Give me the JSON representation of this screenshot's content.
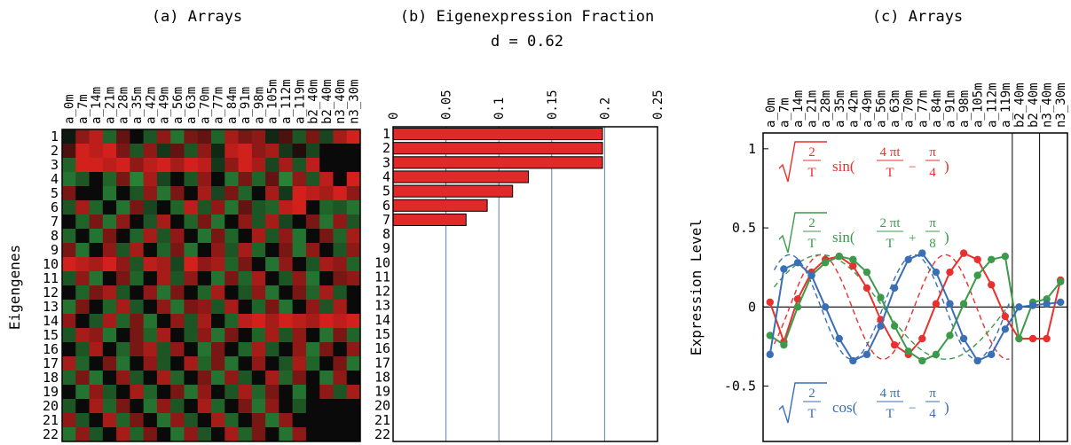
{
  "panel_a": {
    "title": "(a) Arrays",
    "ylabel": "Eigengenes"
  },
  "panel_b": {
    "title": "(b) Eigenexpression Fraction",
    "subtitle": "d = 0.62"
  },
  "panel_c": {
    "title": "(c) Arrays",
    "ylabel": "Expression Level"
  },
  "array_labels": [
    "a_0m",
    "a_7m",
    "a_14m",
    "a_21m",
    "a_28m",
    "a_35m",
    "a_42m",
    "a_49m",
    "a_56m",
    "a_63m",
    "a_70m",
    "a_77m",
    "a_84m",
    "a_91m",
    "a_98m",
    "a_105m",
    "a_112m",
    "a_119m",
    "b2_40m",
    "b2_40m",
    "n3_40m",
    "n3_30m"
  ],
  "eigengene_labels": [
    "1",
    "2",
    "3",
    "4",
    "5",
    "6",
    "7",
    "8",
    "9",
    "10",
    "11",
    "12",
    "13",
    "14",
    "15",
    "16",
    "17",
    "18",
    "19",
    "20",
    "21",
    "22"
  ],
  "colors": {
    "red": "#e8312f",
    "green": "#3d9a4a",
    "blue": "#3a6fb5",
    "bar": "#e02a2a",
    "grid": "#5b7fb5",
    "heat_red": "#e8231f",
    "heat_green": "#2fa040",
    "heat_black": "#0a0a0a"
  },
  "chart_data": [
    {
      "type": "heatmap",
      "rows": 22,
      "cols": 22,
      "description_scale": "red positive, green negative, black zero",
      "values": [
        [
          -0.1,
          0.6,
          0.8,
          -0.6,
          0.4,
          0.0,
          -0.5,
          0.6,
          -0.7,
          0.5,
          0.4,
          -0.6,
          0.7,
          0.5,
          0.6,
          -0.2,
          0.3,
          -0.5,
          0.5,
          -0.4,
          0.7,
          0.9
        ],
        [
          0.3,
          0.9,
          0.8,
          0.9,
          0.5,
          -0.5,
          0.6,
          -0.3,
          0.4,
          -0.5,
          0.6,
          -0.2,
          0.8,
          0.9,
          0.6,
          0.7,
          -0.3,
          0.1,
          -0.4,
          0.0,
          0.0,
          0.0
        ],
        [
          -0.6,
          0.9,
          0.9,
          0.8,
          0.9,
          0.6,
          0.8,
          0.9,
          0.7,
          0.9,
          0.8,
          -0.3,
          0.6,
          0.9,
          0.7,
          -0.4,
          0.7,
          -0.5,
          0.8,
          0.0,
          0.0,
          0.0
        ],
        [
          -0.7,
          -0.5,
          0.0,
          -0.6,
          0.5,
          -0.8,
          0.7,
          -0.4,
          0.0,
          -0.5,
          0.6,
          0.0,
          -0.7,
          0.5,
          -0.6,
          0.4,
          -0.8,
          0.6,
          -0.5,
          0.8,
          0.0,
          0.9
        ],
        [
          0.5,
          0.0,
          0.0,
          -0.7,
          0.0,
          -0.5,
          0.6,
          -0.7,
          0.5,
          0.0,
          0.7,
          -0.4,
          0.5,
          -0.6,
          0.0,
          0.7,
          -0.3,
          0.9,
          0.8,
          0.7,
          0.9,
          0.6
        ],
        [
          -0.5,
          0.7,
          -0.6,
          0.0,
          -0.7,
          0.5,
          -0.4,
          0.0,
          -0.6,
          0.8,
          -0.5,
          0.6,
          -0.7,
          0.4,
          -0.5,
          -0.6,
          0.8,
          0.9,
          0.0,
          -0.6,
          -0.5,
          -0.7
        ],
        [
          0.0,
          -0.6,
          0.5,
          -0.7,
          0.6,
          0.0,
          -0.5,
          0.7,
          0.0,
          -0.6,
          0.5,
          -0.7,
          0.0,
          0.6,
          -0.5,
          0.7,
          -0.4,
          0.0,
          0.5,
          -0.7,
          0.6,
          -0.5
        ],
        [
          -0.6,
          0.0,
          -0.7,
          0.5,
          0.0,
          -0.6,
          0.7,
          -0.5,
          0.6,
          0.0,
          -0.7,
          0.5,
          -0.6,
          0.0,
          0.7,
          -0.5,
          0.6,
          -0.7,
          0.0,
          0.5,
          -0.6,
          0.7
        ],
        [
          0.5,
          -0.7,
          0.0,
          0.6,
          -0.5,
          0.7,
          0.0,
          -0.6,
          0.5,
          -0.7,
          0.0,
          0.6,
          -0.5,
          0.7,
          -0.6,
          0.0,
          0.5,
          -0.7,
          0.6,
          0.0,
          -0.5,
          0.6
        ],
        [
          0.9,
          0.8,
          0.7,
          0.9,
          0.6,
          -0.5,
          0.8,
          0.7,
          -0.4,
          0.9,
          0.6,
          0.7,
          -0.6,
          0.5,
          0.0,
          -0.7,
          0.6,
          0.0,
          -0.5,
          0.7,
          0.6,
          -0.6
        ],
        [
          -0.5,
          0.6,
          -0.7,
          0.0,
          0.5,
          -0.6,
          0.0,
          0.7,
          -0.5,
          0.6,
          0.0,
          -0.7,
          0.5,
          -0.6,
          0.7,
          0.0,
          -0.5,
          0.6,
          -0.7,
          0.0,
          0.5,
          0.6
        ],
        [
          0.0,
          -0.6,
          0.5,
          0.7,
          -0.5,
          0.0,
          0.6,
          -0.7,
          0.5,
          0.0,
          -0.6,
          0.7,
          0.0,
          -0.5,
          0.6,
          -0.7,
          0.0,
          0.5,
          -0.6,
          0.7,
          -0.5,
          0.0
        ],
        [
          -0.7,
          0.5,
          0.0,
          -0.6,
          0.7,
          -0.5,
          0.0,
          0.6,
          -0.7,
          0.5,
          0.6,
          -0.5,
          0.7,
          0.0,
          -0.6,
          0.5,
          -0.7,
          0.0,
          0.6,
          -0.5,
          0.7,
          0.0
        ],
        [
          0.6,
          0.0,
          -0.5,
          0.7,
          -0.6,
          0.5,
          -0.7,
          0.0,
          0.6,
          -0.5,
          0.7,
          0.0,
          -0.6,
          0.8,
          0.9,
          0.7,
          0.9,
          0.8,
          0.7,
          0.9,
          0.8,
          0.9
        ],
        [
          -0.5,
          0.7,
          0.6,
          -0.7,
          0.0,
          0.5,
          -0.6,
          0.7,
          0.0,
          -0.5,
          0.6,
          -0.7,
          0.5,
          0.0,
          -0.6,
          0.7,
          -0.5,
          0.6,
          0.0,
          -0.7,
          0.5,
          -0.6
        ],
        [
          0.0,
          -0.5,
          0.7,
          0.0,
          -0.6,
          0.5,
          0.7,
          -0.5,
          0.6,
          0.0,
          -0.7,
          0.5,
          0.0,
          -0.6,
          0.7,
          -0.5,
          0.0,
          0.6,
          -0.7,
          0.5,
          0.0,
          0.6
        ],
        [
          0.7,
          -0.6,
          0.0,
          0.5,
          -0.7,
          0.0,
          0.6,
          -0.5,
          0.0,
          0.7,
          -0.6,
          0.5,
          -0.7,
          0.0,
          0.6,
          0.0,
          -0.5,
          0.7,
          -0.6,
          0.0,
          0.5,
          -0.7
        ],
        [
          -0.6,
          0.5,
          -0.7,
          0.0,
          0.6,
          -0.5,
          0.0,
          0.7,
          -0.6,
          0.0,
          0.5,
          -0.7,
          0.6,
          -0.5,
          0.0,
          0.7,
          -0.6,
          0.5,
          0.0,
          -0.7,
          0.6,
          0.0
        ],
        [
          0.0,
          -0.7,
          0.6,
          -0.5,
          0.0,
          0.7,
          -0.6,
          0.0,
          0.5,
          -0.7,
          0.6,
          0.0,
          -0.5,
          0.7,
          -0.6,
          0.5,
          0.0,
          -0.7,
          0.0,
          0.6,
          -0.5,
          0.7
        ],
        [
          -0.5,
          0.0,
          0.7,
          -0.6,
          0.5,
          0.0,
          -0.7,
          0.6,
          -0.5,
          0.0,
          0.7,
          -0.6,
          0.0,
          0.5,
          -0.7,
          0.6,
          0.0,
          -0.5,
          0.0,
          0.0,
          0.0,
          0.0
        ],
        [
          0.6,
          -0.5,
          0.0,
          0.7,
          -0.6,
          0.5,
          0.0,
          -0.7,
          0.6,
          -0.5,
          0.0,
          0.7,
          -0.6,
          0.0,
          0.5,
          -0.7,
          0.6,
          0.0,
          0.0,
          0.0,
          0.0,
          0.0
        ],
        [
          -0.7,
          0.6,
          -0.5,
          0.0,
          0.7,
          -0.6,
          0.5,
          0.0,
          -0.7,
          0.6,
          -0.5,
          0.0,
          0.7,
          -0.6,
          0.5,
          0.0,
          -0.7,
          0.6,
          0.0,
          0.0,
          0.0,
          0.0
        ]
      ]
    },
    {
      "type": "bar",
      "orientation": "horizontal",
      "categories": [
        "1",
        "2",
        "3",
        "4",
        "5",
        "6",
        "7",
        "8",
        "9",
        "10",
        "11",
        "12",
        "13",
        "14",
        "15",
        "16",
        "17",
        "18",
        "19",
        "20",
        "21",
        "22"
      ],
      "values": [
        0.198,
        0.198,
        0.198,
        0.128,
        0.113,
        0.089,
        0.069,
        0,
        0,
        0,
        0,
        0,
        0,
        0,
        0,
        0,
        0,
        0,
        0,
        0,
        0,
        0
      ],
      "xticks": [
        "0",
        "0.05",
        "0.1",
        "0.15",
        "0.2",
        "0.25"
      ],
      "xlim": [
        0,
        0.25
      ],
      "grid": true
    },
    {
      "type": "line",
      "categories_count": 22,
      "yticks": [
        "1",
        "0.5",
        "0",
        "-0.5"
      ],
      "ylim": [
        -0.85,
        1.1
      ],
      "series": [
        {
          "color": "red",
          "values": [
            0.03,
            -0.22,
            0.05,
            0.22,
            0.3,
            0.32,
            0.26,
            0.12,
            -0.08,
            -0.24,
            -0.3,
            -0.2,
            0.02,
            0.22,
            0.34,
            0.3,
            0.14,
            -0.06,
            -0.2,
            -0.2,
            -0.2,
            0.17
          ]
        },
        {
          "color": "green",
          "values": [
            -0.18,
            -0.24,
            0.0,
            0.2,
            0.28,
            0.32,
            0.3,
            0.22,
            0.06,
            -0.12,
            -0.28,
            -0.34,
            -0.3,
            -0.18,
            0.02,
            0.2,
            0.3,
            0.32,
            -0.2,
            0.03,
            0.05,
            0.16
          ]
        },
        {
          "color": "blue",
          "values": [
            -0.3,
            0.24,
            0.28,
            0.2,
            0.0,
            -0.2,
            -0.34,
            -0.3,
            -0.12,
            0.12,
            0.3,
            0.34,
            0.22,
            0.02,
            -0.2,
            -0.34,
            -0.3,
            -0.14,
            0.0,
            0.01,
            0.02,
            0.03
          ]
        }
      ],
      "dashed_series": [
        {
          "color": "red",
          "formula": "sqrt(2/T) sin(4 pi t/T - pi/4)"
        },
        {
          "color": "green",
          "formula": "sqrt(2/T) sin(2 pi t/T + pi/8)"
        },
        {
          "color": "blue",
          "formula": "sqrt(2/T) cos(4 pi t/T - pi/4)"
        }
      ]
    }
  ],
  "formulas": {
    "red": {
      "coef_num": "2",
      "coef_den": "T",
      "fn": "sin(",
      "arg_num": "4 πt",
      "arg_den": "T",
      "op": "−",
      "phase_num": "π",
      "phase_den": "4",
      "close": ")"
    },
    "green": {
      "coef_num": "2",
      "coef_den": "T",
      "fn": "sin(",
      "arg_num": "2 πt",
      "arg_den": "T",
      "op": "+",
      "phase_num": "π",
      "phase_den": "8",
      "close": ")"
    },
    "blue": {
      "coef_num": "2",
      "coef_den": "T",
      "fn": "cos(",
      "arg_num": "4 πt",
      "arg_den": "T",
      "op": "−",
      "phase_num": "π",
      "phase_den": "4",
      "close": ")"
    }
  }
}
